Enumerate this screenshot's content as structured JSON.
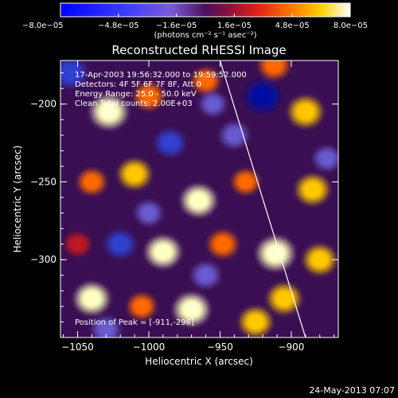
{
  "chart_data": {
    "type": "heatmap",
    "title": "Reconstructed RHESSI Image",
    "xlabel": "Heliocentric X (arcsec)",
    "ylabel": "Heliocentric Y (arcsec)",
    "xlim": [
      -1062,
      -867
    ],
    "ylim": [
      -350,
      -172
    ],
    "x_ticks": [
      -1050,
      -1000,
      -950,
      -900
    ],
    "y_ticks": [
      -200,
      -250,
      -300
    ],
    "x_tick_labels": [
      "−1050",
      "−1000",
      "−950",
      "−900"
    ],
    "y_tick_labels": [
      "−200",
      "−250",
      "−300"
    ],
    "colorbar": {
      "range": [
        -8e-05,
        8e-05
      ],
      "tick_labels": [
        "−8.0e−05",
        "−4.8e−05",
        "−1.6e−05",
        "1.6e−05",
        "4.8e−05",
        "8.0e−05"
      ],
      "units_text": "(photons cm⁻² s⁻¹ asec⁻²)"
    },
    "annotations": {
      "time_range": "17-Apr-2003 19:56:32.000 to 19:59:52.000",
      "detectors": "Detectors: 4F 5F 6F 7F 8F, Att 0",
      "energy": "Energy Range: 25.0 - 50.0 keV",
      "clean": "Clean     Total counts: 2.00E+03",
      "peak": "Position of Peak = [-911,-296]"
    },
    "limb_line": [
      [
        -950,
        -172
      ],
      [
        -890,
        -350
      ]
    ],
    "blobs": [
      {
        "x": -1028,
        "y": -205,
        "v": 1.0
      },
      {
        "x": -1000,
        "y": -195,
        "v": 0.55
      },
      {
        "x": -960,
        "y": -185,
        "v": 0.45
      },
      {
        "x": -912,
        "y": -175,
        "v": 0.6
      },
      {
        "x": -890,
        "y": -205,
        "v": 0.8
      },
      {
        "x": -1040,
        "y": -250,
        "v": 0.45
      },
      {
        "x": -1010,
        "y": -245,
        "v": 0.7
      },
      {
        "x": -965,
        "y": -262,
        "v": 0.85
      },
      {
        "x": -932,
        "y": -250,
        "v": 0.4
      },
      {
        "x": -885,
        "y": -255,
        "v": 0.75
      },
      {
        "x": -990,
        "y": -295,
        "v": 0.85
      },
      {
        "x": -948,
        "y": -290,
        "v": 0.55
      },
      {
        "x": -911,
        "y": -296,
        "v": 1.0
      },
      {
        "x": -880,
        "y": -300,
        "v": 0.7
      },
      {
        "x": -1040,
        "y": -325,
        "v": 0.85
      },
      {
        "x": -970,
        "y": -332,
        "v": 0.9
      },
      {
        "x": -925,
        "y": -340,
        "v": 0.7
      },
      {
        "x": -905,
        "y": -325,
        "v": 0.75
      },
      {
        "x": -1005,
        "y": -330,
        "v": 0.45
      },
      {
        "x": -1050,
        "y": -290,
        "v": 0.35
      },
      {
        "x": -920,
        "y": -195,
        "v": -1.0
      },
      {
        "x": -985,
        "y": -225,
        "v": -0.6
      },
      {
        "x": -1055,
        "y": -180,
        "v": -0.8
      },
      {
        "x": -940,
        "y": -220,
        "v": -0.5
      },
      {
        "x": -1020,
        "y": -290,
        "v": -0.6
      },
      {
        "x": -960,
        "y": -310,
        "v": -0.5
      },
      {
        "x": -875,
        "y": -235,
        "v": -0.4
      },
      {
        "x": -1030,
        "y": -345,
        "v": -0.5
      },
      {
        "x": -1000,
        "y": -270,
        "v": -0.4
      },
      {
        "x": -955,
        "y": -200,
        "v": -0.35
      }
    ]
  },
  "footer": {
    "timestamp": "24-May-2013 07:07"
  }
}
